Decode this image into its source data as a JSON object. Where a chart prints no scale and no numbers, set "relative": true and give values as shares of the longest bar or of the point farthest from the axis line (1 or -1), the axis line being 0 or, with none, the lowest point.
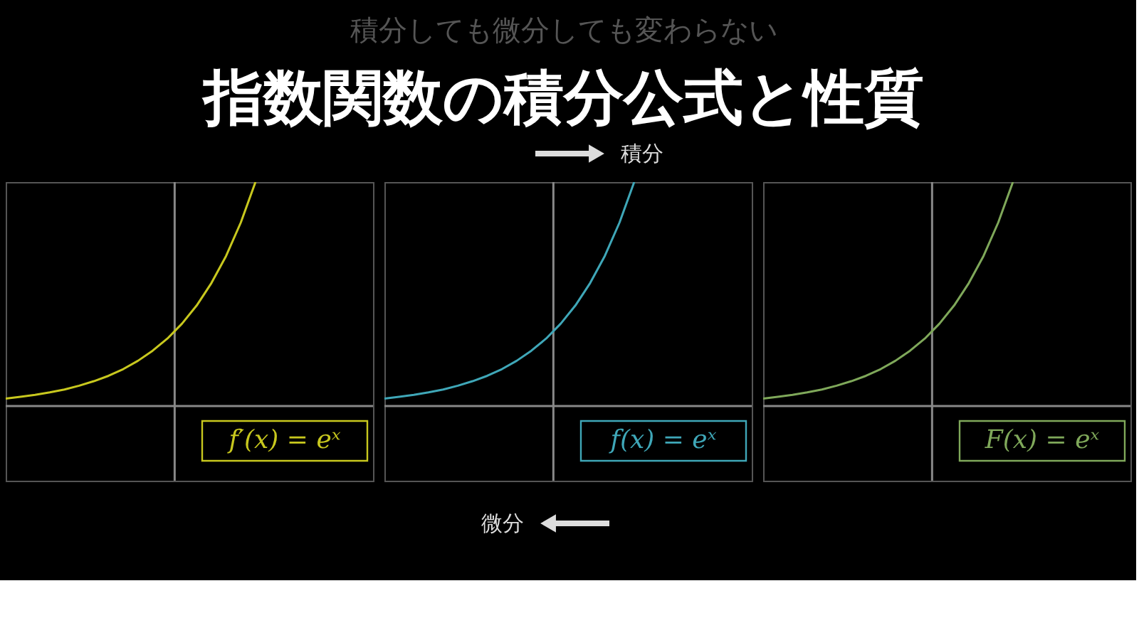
{
  "chart_data": [
    {
      "type": "other",
      "title": "指数関数の積分公式と性質",
      "subtitle": "積分しても微分しても変わらない",
      "annotations": [
        "積分",
        "微分"
      ]
    },
    {
      "type": "line",
      "relative": true,
      "categories": [
        null,
        null,
        null,
        null,
        null,
        null,
        null,
        null,
        null,
        null,
        null,
        null,
        null,
        null,
        null,
        null,
        null,
        null
      ],
      "series": [
        {
          "name": "f′(x) = eˣ",
          "color": "#c8c81e",
          "values": [
            0.033,
            0.041,
            0.05,
            0.061,
            0.074,
            0.091,
            0.111,
            0.135,
            0.165,
            0.202,
            0.247,
            0.301,
            0.368,
            0.449,
            0.549,
            0.67,
            0.819,
            1.0
          ]
        }
      ]
    },
    {
      "type": "line",
      "relative": true,
      "categories": [
        null,
        null,
        null,
        null,
        null,
        null,
        null,
        null,
        null,
        null,
        null,
        null,
        null,
        null,
        null,
        null,
        null,
        null
      ],
      "series": [
        {
          "name": "f(x) = eˣ",
          "color": "#3fa7b8",
          "values": [
            0.033,
            0.041,
            0.05,
            0.061,
            0.074,
            0.091,
            0.111,
            0.135,
            0.165,
            0.202,
            0.247,
            0.301,
            0.368,
            0.449,
            0.549,
            0.67,
            0.819,
            1.0
          ]
        }
      ]
    },
    {
      "type": "line",
      "relative": true,
      "categories": [
        null,
        null,
        null,
        null,
        null,
        null,
        null,
        null,
        null,
        null,
        null,
        null,
        null,
        null,
        null,
        null,
        null,
        null
      ],
      "series": [
        {
          "name": "F(x) = eˣ",
          "color": "#7fa85a",
          "values": [
            0.033,
            0.041,
            0.05,
            0.061,
            0.074,
            0.091,
            0.111,
            0.135,
            0.165,
            0.202,
            0.247,
            0.301,
            0.368,
            0.449,
            0.549,
            0.67,
            0.819,
            1.0
          ]
        }
      ]
    }
  ]
}
